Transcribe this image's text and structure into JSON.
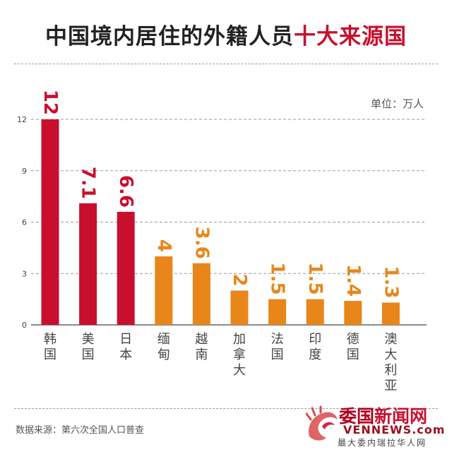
{
  "title": {
    "main": "中国境内居住的外籍人员",
    "highlight": "十大来源国"
  },
  "unit_label": "单位：万人",
  "source": "数据来源：第六次全国人口普查",
  "logo": {
    "name_part1": "委国",
    "name_part2": "新闻网",
    "domain": "VENNEWS.com",
    "tagline": "最大委内瑞拉华人网"
  },
  "colors": {
    "red": "#c8102e",
    "orange": "#e8861a",
    "grid": "#9a9a9a",
    "text": "#444444"
  },
  "chart_data": {
    "type": "bar",
    "title": "中国境内居住的外籍人员十大来源国",
    "xlabel": "",
    "ylabel": "",
    "unit": "万人",
    "categories": [
      "韩国",
      "美国",
      "日本",
      "缅甸",
      "越南",
      "加拿大",
      "法国",
      "印度",
      "德国",
      "澳大利亚"
    ],
    "values": [
      12,
      7.1,
      6.6,
      4,
      3.6,
      2,
      1.5,
      1.5,
      1.4,
      1.3
    ],
    "value_labels": [
      "12",
      "7.1",
      "6.6",
      "4",
      "3.6",
      "2",
      "1.5",
      "1.5",
      "1.4",
      "1.3"
    ],
    "colors": [
      "red",
      "red",
      "red",
      "orange",
      "orange",
      "orange",
      "orange",
      "orange",
      "orange",
      "orange"
    ],
    "ylim": [
      0,
      12
    ],
    "yticks": [
      0,
      3,
      6,
      9,
      12
    ],
    "grid": true,
    "legend": "none"
  }
}
